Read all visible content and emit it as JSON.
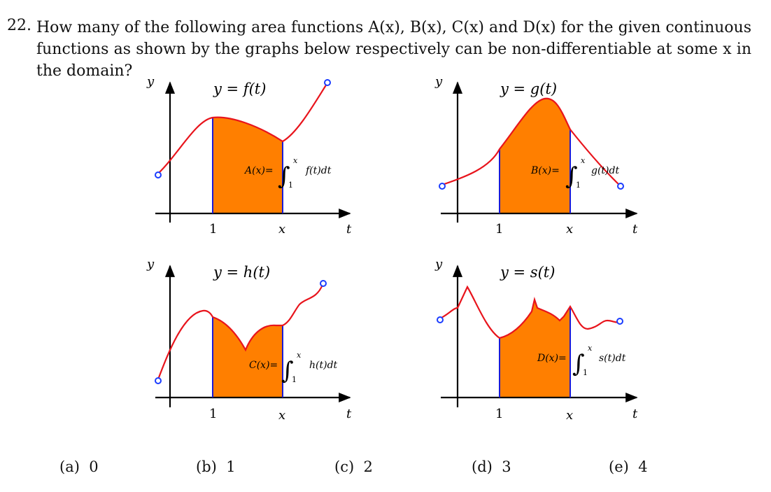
{
  "question": {
    "number": "22.",
    "text": "How many of the following area functions A(x), B(x), C(x) and D(x) for the given continuous functions as shown by the graphs below respectively can be non-differentiable at some x in the domain?"
  },
  "graphs": [
    {
      "id": "f",
      "function_label": "y = f(t)",
      "area_label": "A(x)=",
      "integral_upper": "x",
      "integral_lower": "1",
      "integrand": "f(t)dt",
      "y_axis_label": "y",
      "t_axis_label": "t",
      "tick_1": "1",
      "tick_x": "x"
    },
    {
      "id": "g",
      "function_label": "y = g(t)",
      "area_label": "B(x)=",
      "integral_upper": "x",
      "integral_lower": "1",
      "integrand": "g(t)dt",
      "y_axis_label": "y",
      "t_axis_label": "t",
      "tick_1": "1",
      "tick_x": "x"
    },
    {
      "id": "h",
      "function_label": "y = h(t)",
      "area_label": "C(x)=",
      "integral_upper": "x",
      "integral_lower": "1",
      "integrand": "h(t)dt",
      "y_axis_label": "y",
      "t_axis_label": "t",
      "tick_1": "1",
      "tick_x": "x"
    },
    {
      "id": "s",
      "function_label": "y = s(t)",
      "area_label": "D(x)=",
      "integral_upper": "x",
      "integral_lower": "1",
      "integrand": "s(t)dt",
      "y_axis_label": "y",
      "t_axis_label": "t",
      "tick_1": "1",
      "tick_x": "x"
    }
  ],
  "colors": {
    "curve": "#e8141c",
    "fill": "#ff7f00",
    "vertical_bounds": "#1a1ad6",
    "open_endpoint": "#1a3cff",
    "axes": "#000000"
  },
  "choices": [
    {
      "label": "(a)",
      "value": "0"
    },
    {
      "label": "(b)",
      "value": "1"
    },
    {
      "label": "(c)",
      "value": "2"
    },
    {
      "label": "(d)",
      "value": "3"
    },
    {
      "label": "(e)",
      "value": "4"
    }
  ]
}
